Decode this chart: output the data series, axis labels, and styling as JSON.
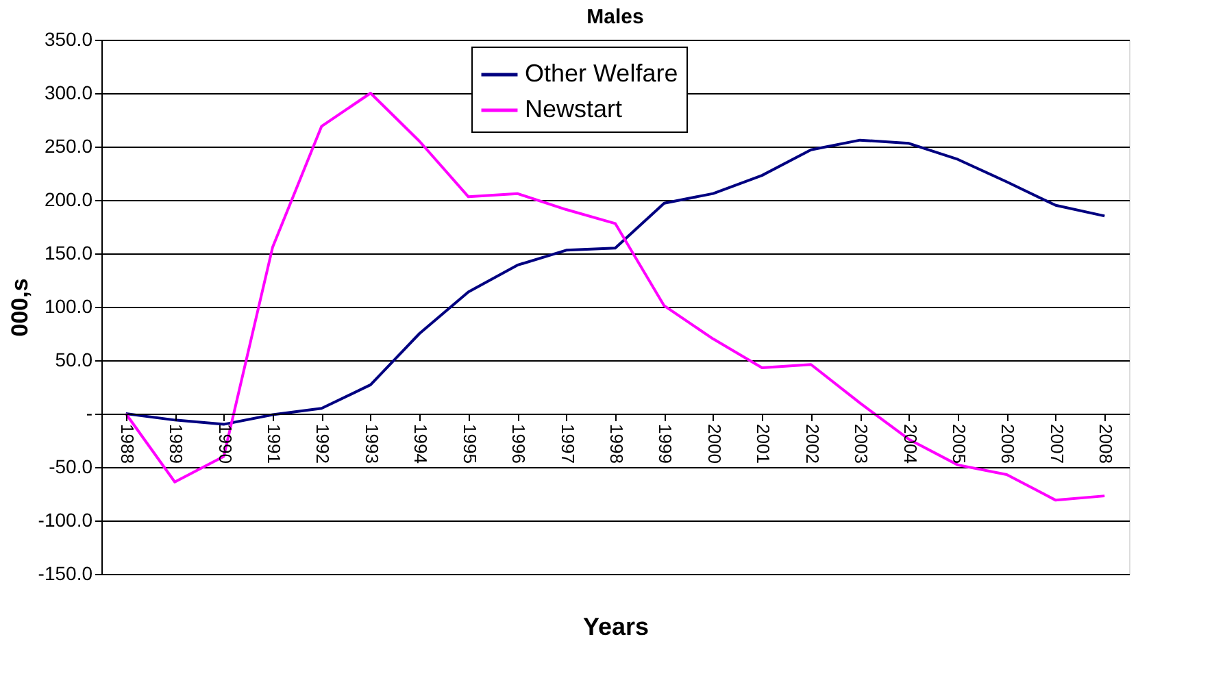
{
  "chart_data": {
    "type": "line",
    "title": "Males",
    "xlabel": "Years",
    "ylabel": "000,s",
    "categories": [
      "1988",
      "1989",
      "1990",
      "1991",
      "1992",
      "1993",
      "1994",
      "1995",
      "1996",
      "1997",
      "1998",
      "1999",
      "2000",
      "2001",
      "2002",
      "2003",
      "2004",
      "2005",
      "2006",
      "2007",
      "2008"
    ],
    "series": [
      {
        "name": "Other Welfare",
        "color": "#000080",
        "values": [
          0,
          -6,
          -10,
          -1,
          5,
          27,
          75,
          114,
          139,
          153,
          155,
          197,
          206,
          223,
          247,
          256,
          253,
          238,
          217,
          195,
          185
        ]
      },
      {
        "name": "Newstart",
        "color": "#ff00ff",
        "values": [
          0,
          -64,
          -40,
          156,
          269,
          300,
          255,
          203,
          206,
          191,
          178,
          101,
          70,
          43,
          46,
          10,
          -24,
          -48,
          -57,
          -81,
          -77
        ]
      }
    ],
    "ylim": [
      -150,
      350
    ],
    "yticks": [
      {
        "value": -150,
        "label": "-150.0"
      },
      {
        "value": -100,
        "label": "-100.0"
      },
      {
        "value": -50,
        "label": "-50.0"
      },
      {
        "value": 0,
        "label": "-"
      },
      {
        "value": 50,
        "label": "50.0"
      },
      {
        "value": 100,
        "label": "100.0"
      },
      {
        "value": 150,
        "label": "150.0"
      },
      {
        "value": 200,
        "label": "200.0"
      },
      {
        "value": 250,
        "label": "250.0"
      },
      {
        "value": 300,
        "label": "300.0"
      },
      {
        "value": 350,
        "label": "350.0"
      }
    ],
    "grid": "y",
    "legend": "top",
    "line_style": "solid",
    "marker": "none"
  }
}
